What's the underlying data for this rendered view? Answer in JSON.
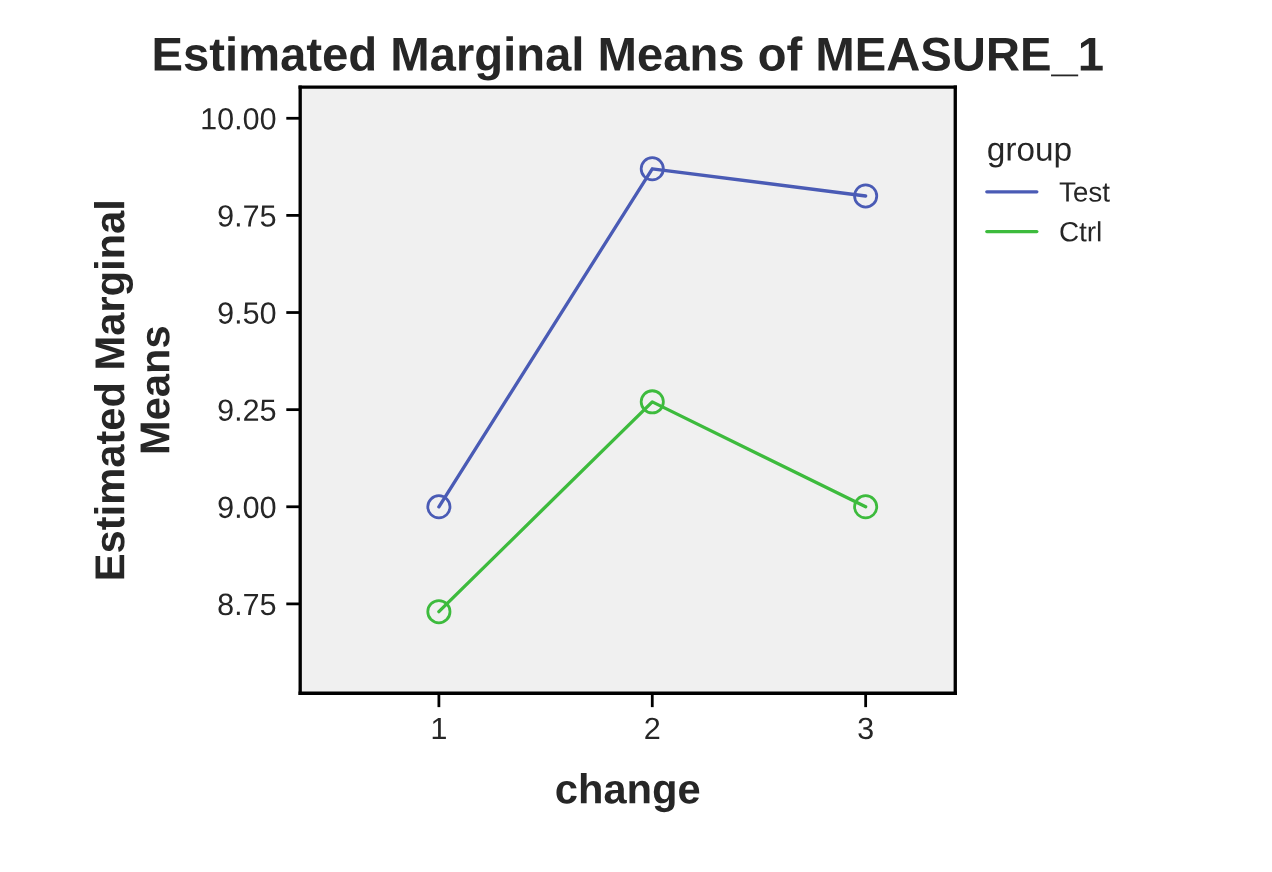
{
  "chart_data": {
    "type": "line",
    "title": "Estimated Marginal Means of MEASURE_1",
    "xlabel": "change",
    "ylabel": "Estimated Marginal\nMeans",
    "legend_title": "group",
    "x": [
      1,
      2,
      3
    ],
    "series": [
      {
        "name": "Test",
        "color": "#4a5bb5",
        "values": [
          9.0,
          9.87,
          9.8
        ]
      },
      {
        "name": "Ctrl",
        "color": "#3dbb3d",
        "values": [
          8.73,
          9.27,
          9.0
        ]
      }
    ],
    "xlim": [
      0.35,
      3.42
    ],
    "xticks": [
      1,
      2,
      3
    ],
    "ylim": [
      8.52,
      10.08
    ],
    "yticks": [
      {
        "value": 8.75,
        "label": "8.75"
      },
      {
        "value": 9.0,
        "label": "9.00"
      },
      {
        "value": 9.25,
        "label": "9.25"
      },
      {
        "value": 9.5,
        "label": "9.50"
      },
      {
        "value": 9.75,
        "label": "9.75"
      },
      {
        "value": 10.0,
        "label": "10.00"
      }
    ],
    "grid": false,
    "legend": "right",
    "marker": "circle",
    "line_style": "solid"
  }
}
